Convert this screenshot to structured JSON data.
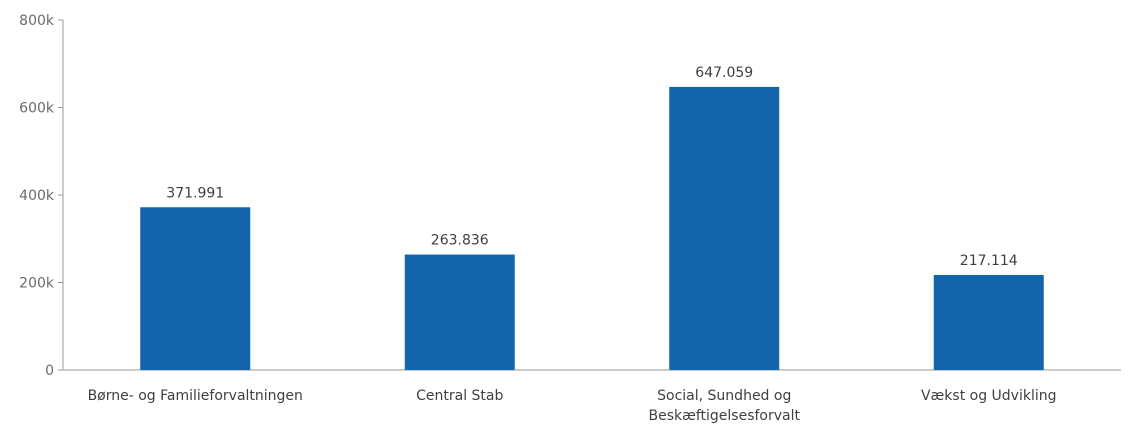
{
  "chart_data": {
    "type": "bar",
    "categories": [
      "Børne- og Familieforvaltningen",
      "Central Stab",
      "Social, Sundhed og Beskæftigelsesforvalt",
      "Vækst og Udvikling"
    ],
    "category_label_lines": [
      [
        "Børne- og Familieforvaltningen"
      ],
      [
        "Central Stab"
      ],
      [
        "Social, Sundhed og",
        "Beskæftigelsesforvalt"
      ],
      [
        "Vækst og Udvikling"
      ]
    ],
    "values": [
      371991,
      263836,
      647059,
      217114
    ],
    "data_labels": [
      "371.991",
      "263.836",
      "647.059",
      "217.114"
    ],
    "title": "",
    "xlabel": "",
    "ylabel": "",
    "ylim": [
      0,
      800000
    ],
    "y_ticks": [
      0,
      200000,
      400000,
      600000,
      800000
    ],
    "y_tick_labels": [
      "0",
      "200k",
      "400k",
      "600k",
      "800k"
    ],
    "grid": false,
    "legend": "none",
    "bar_color": "#1464ac"
  }
}
